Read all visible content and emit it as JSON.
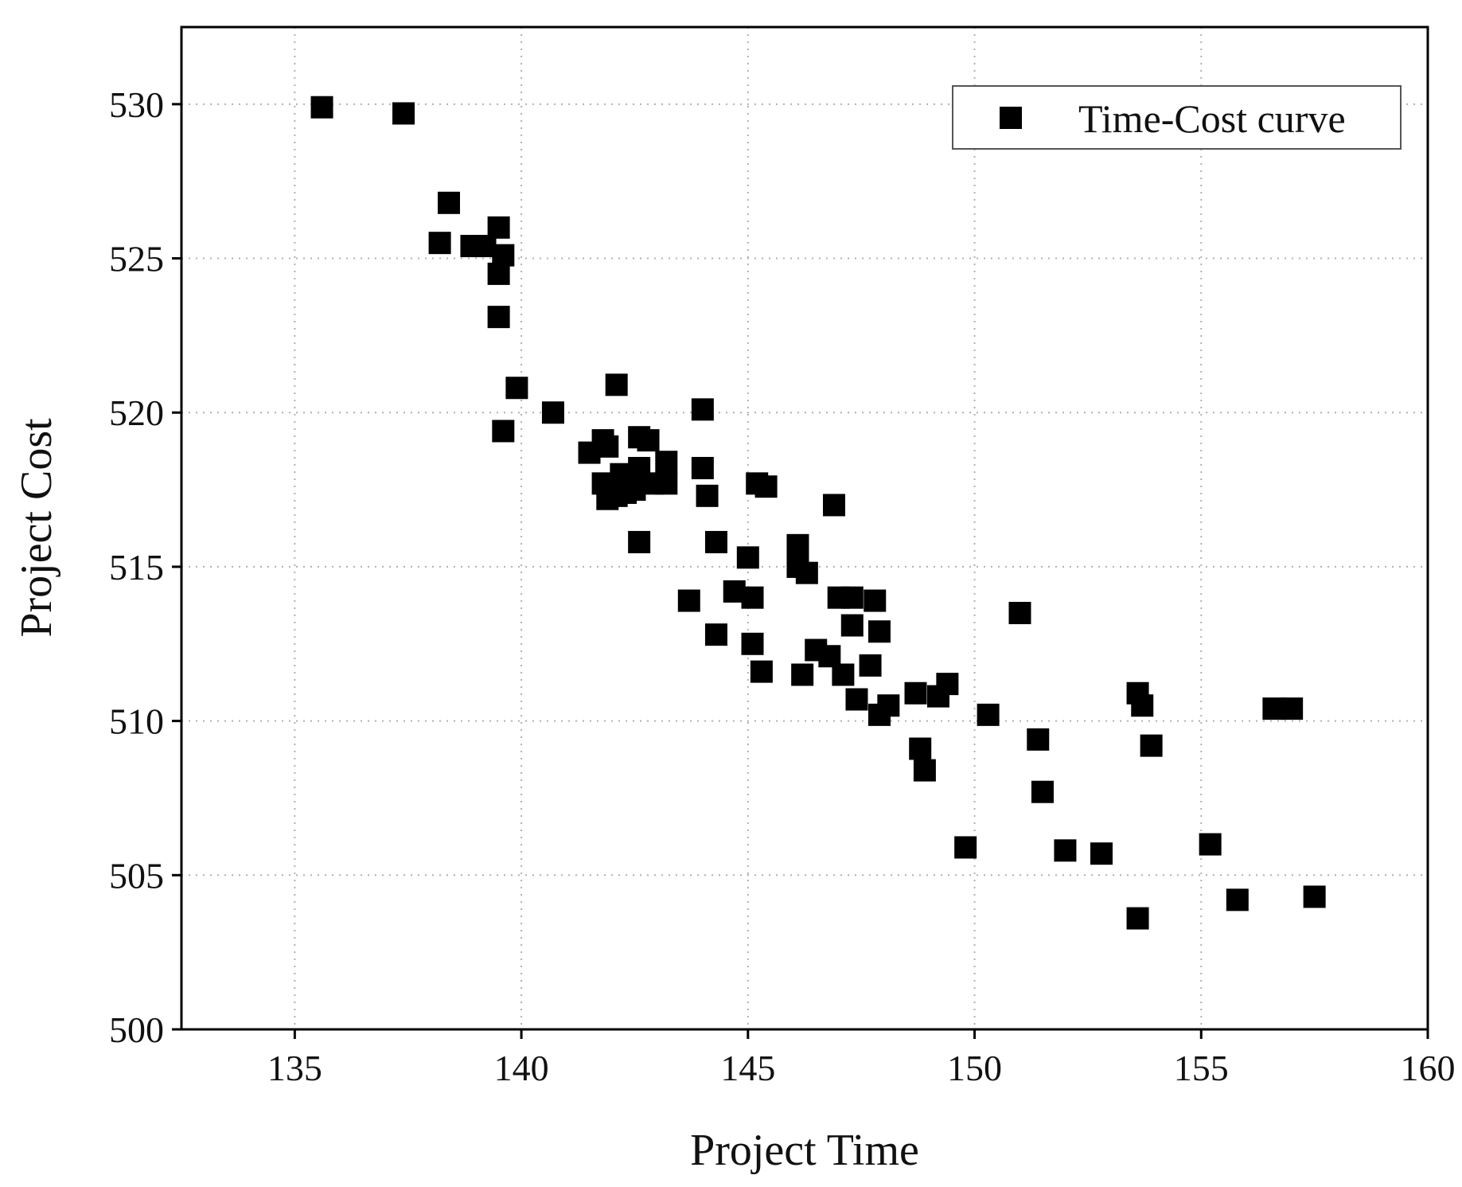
{
  "chart_data": {
    "type": "scatter",
    "title": "",
    "xlabel": "Project Time",
    "ylabel": "Project Cost",
    "xlim": [
      132.5,
      160
    ],
    "ylim": [
      500,
      532.5
    ],
    "xticks": [
      135,
      140,
      145,
      150,
      155,
      160
    ],
    "yticks": [
      500,
      505,
      510,
      515,
      520,
      525,
      530
    ],
    "grid": true,
    "legend_position": "top-right",
    "series": [
      {
        "name": "Time-Cost curve",
        "marker": "square",
        "color": "#000000",
        "points": [
          [
            135.6,
            529.9
          ],
          [
            137.4,
            529.7
          ],
          [
            138.4,
            526.8
          ],
          [
            138.2,
            525.5
          ],
          [
            138.9,
            525.4
          ],
          [
            139.2,
            525.4
          ],
          [
            139.5,
            526.0
          ],
          [
            139.6,
            525.1
          ],
          [
            139.5,
            524.5
          ],
          [
            139.5,
            523.1
          ],
          [
            139.9,
            520.8
          ],
          [
            139.6,
            519.4
          ],
          [
            140.7,
            520.0
          ],
          [
            141.5,
            518.7
          ],
          [
            141.8,
            519.1
          ],
          [
            141.9,
            518.9
          ],
          [
            141.8,
            517.7
          ],
          [
            141.9,
            517.2
          ],
          [
            142.1,
            517.3
          ],
          [
            142.1,
            520.9
          ],
          [
            142.2,
            518.0
          ],
          [
            142.3,
            517.4
          ],
          [
            142.5,
            517.5
          ],
          [
            142.6,
            518.2
          ],
          [
            142.6,
            519.2
          ],
          [
            142.8,
            519.1
          ],
          [
            142.9,
            517.7
          ],
          [
            143.2,
            517.7
          ],
          [
            143.2,
            518.4
          ],
          [
            142.6,
            515.8
          ],
          [
            143.7,
            513.9
          ],
          [
            144.0,
            520.1
          ],
          [
            144.0,
            518.2
          ],
          [
            144.1,
            517.3
          ],
          [
            144.3,
            515.8
          ],
          [
            144.3,
            512.8
          ],
          [
            144.7,
            514.2
          ],
          [
            145.0,
            515.3
          ],
          [
            145.1,
            514.0
          ],
          [
            145.1,
            512.5
          ],
          [
            145.2,
            517.7
          ],
          [
            145.4,
            517.6
          ],
          [
            145.3,
            511.6
          ],
          [
            146.1,
            515.7
          ],
          [
            146.1,
            515.0
          ],
          [
            146.3,
            514.8
          ],
          [
            146.2,
            511.5
          ],
          [
            146.5,
            512.3
          ],
          [
            146.8,
            512.1
          ],
          [
            146.9,
            517.0
          ],
          [
            147.0,
            514.0
          ],
          [
            147.1,
            511.5
          ],
          [
            147.3,
            514.0
          ],
          [
            147.3,
            513.1
          ],
          [
            147.4,
            510.7
          ],
          [
            147.7,
            511.8
          ],
          [
            147.8,
            513.9
          ],
          [
            147.9,
            512.9
          ],
          [
            147.9,
            510.2
          ],
          [
            148.1,
            510.5
          ],
          [
            148.7,
            510.9
          ],
          [
            148.8,
            509.1
          ],
          [
            148.9,
            508.4
          ],
          [
            149.2,
            510.8
          ],
          [
            149.4,
            511.2
          ],
          [
            149.8,
            505.9
          ],
          [
            150.3,
            510.2
          ],
          [
            151.0,
            513.5
          ],
          [
            151.4,
            509.4
          ],
          [
            151.5,
            507.7
          ],
          [
            152.0,
            505.8
          ],
          [
            152.8,
            505.7
          ],
          [
            153.6,
            510.9
          ],
          [
            153.7,
            510.5
          ],
          [
            153.6,
            503.6
          ],
          [
            153.9,
            509.2
          ],
          [
            155.2,
            506.0
          ],
          [
            155.8,
            504.2
          ],
          [
            156.6,
            510.4
          ],
          [
            157.0,
            510.4
          ],
          [
            157.5,
            504.3
          ]
        ]
      }
    ]
  }
}
